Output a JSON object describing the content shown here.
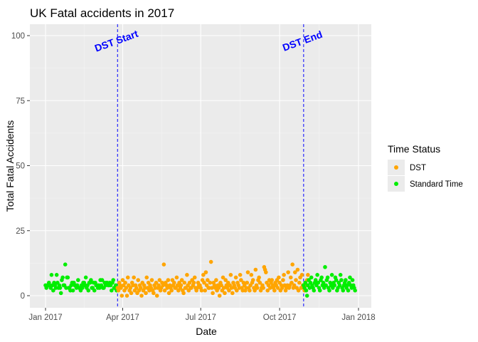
{
  "chart_data": {
    "type": "scatter",
    "title": "UK Fatal accidents in 2017",
    "xlabel": "Date",
    "ylabel": "Total Fatal Accidents",
    "x_ticks": [
      "Jan 2017",
      "Apr 2017",
      "Jul 2017",
      "Oct 2017",
      "Jan 2018"
    ],
    "y_ticks": [
      "0",
      "25",
      "50",
      "75",
      "100"
    ],
    "ylim": [
      0,
      100
    ],
    "xlim": [
      "2017-01-01",
      "2018-01-01"
    ],
    "grid": true,
    "legend": {
      "title": "Time Status",
      "placement": "right",
      "entries": [
        {
          "name": "DST",
          "color": "#ffa500"
        },
        {
          "name": "Standard Time",
          "color": "#00ee00"
        }
      ]
    },
    "annotations": [
      {
        "text": "DST Start",
        "date": "2017-03-26",
        "color": "#0000ff",
        "line": "dashed"
      },
      {
        "text": "DST End",
        "date": "2017-10-29",
        "color": "#0000ff",
        "line": "dashed"
      }
    ],
    "series": [
      {
        "name": "Standard Time",
        "color": "#00ee00",
        "start_date": "2017-01-01",
        "values": [
          4,
          3,
          4,
          4,
          5,
          4,
          3,
          8,
          4,
          2,
          5,
          4,
          3,
          8,
          5,
          3,
          4,
          3,
          1,
          6,
          7,
          4,
          4,
          12,
          3,
          7,
          7,
          3,
          3,
          2,
          4,
          5,
          2,
          5,
          4,
          4,
          3,
          4,
          6,
          3,
          3,
          2,
          4,
          3,
          5,
          5,
          4,
          7,
          3,
          4,
          2,
          5,
          5,
          6,
          3,
          3,
          5,
          2,
          5,
          4,
          4,
          3,
          4,
          3,
          6,
          4,
          6,
          3,
          3,
          5,
          4,
          5,
          5,
          4,
          4,
          5,
          4,
          2,
          5,
          6,
          3,
          3,
          4,
          2
        ]
      },
      {
        "name": "DST",
        "color": "#ffa500",
        "start_date": "2017-03-26",
        "values": [
          3,
          2,
          5,
          4,
          3,
          0,
          6,
          4,
          2,
          5,
          3,
          0,
          7,
          4,
          2,
          3,
          1,
          5,
          4,
          7,
          2,
          4,
          3,
          1,
          6,
          2,
          4,
          3,
          0,
          5,
          2,
          4,
          3,
          1,
          7,
          3,
          5,
          2,
          4,
          3,
          6,
          2,
          1,
          4,
          3,
          5,
          0,
          3,
          4,
          6,
          2,
          3,
          5,
          4,
          12,
          2,
          5,
          4,
          3,
          6,
          1,
          4,
          3,
          2,
          6,
          4,
          5,
          3,
          3,
          7,
          4,
          2,
          5,
          3,
          4,
          6,
          2,
          1,
          5,
          3,
          3,
          8,
          4,
          2,
          5,
          3,
          3,
          6,
          4,
          5,
          7,
          3,
          2,
          3,
          5,
          4,
          4,
          3,
          2,
          6,
          8,
          5,
          2,
          9,
          4,
          6,
          3,
          3,
          5,
          13,
          3,
          1,
          5,
          4,
          3,
          6,
          2,
          4,
          3,
          0,
          5,
          4,
          2,
          7,
          3,
          1,
          6,
          4,
          3,
          5,
          2,
          4,
          8,
          3,
          1,
          5,
          4,
          3,
          7,
          2,
          5,
          4,
          3,
          8,
          6,
          3,
          2,
          5,
          4,
          2,
          3,
          5,
          9,
          3,
          2,
          4,
          8,
          5,
          6,
          3,
          2,
          10,
          4,
          3,
          6,
          7,
          5,
          2,
          3,
          4,
          3,
          11,
          10,
          9,
          5,
          2,
          4,
          6,
          3,
          5,
          6,
          4,
          3,
          2,
          5,
          4,
          6,
          3,
          7,
          5,
          2,
          4,
          3,
          6,
          8,
          4,
          2,
          3,
          4,
          9,
          3,
          4,
          7,
          5,
          12,
          3,
          4,
          9,
          6,
          3,
          10,
          2,
          5,
          7,
          3,
          8,
          4,
          3,
          2,
          5,
          4,
          6,
          8
        ]
      },
      {
        "name": "Standard Time",
        "color": "#00ee00",
        "start_date": "2017-10-29",
        "values": [
          4,
          3,
          5,
          2,
          0,
          4,
          6,
          3,
          5,
          7,
          4,
          3,
          2,
          5,
          6,
          4,
          8,
          5,
          3,
          2,
          6,
          7,
          4,
          5,
          3,
          11,
          4,
          6,
          7,
          3,
          2,
          5,
          4,
          8,
          3,
          5,
          4,
          7,
          6,
          2,
          3,
          5,
          4,
          8,
          6,
          3,
          2,
          4,
          5,
          6,
          3,
          4,
          2,
          5,
          7,
          4,
          3,
          6,
          4,
          3,
          2
        ]
      }
    ]
  }
}
